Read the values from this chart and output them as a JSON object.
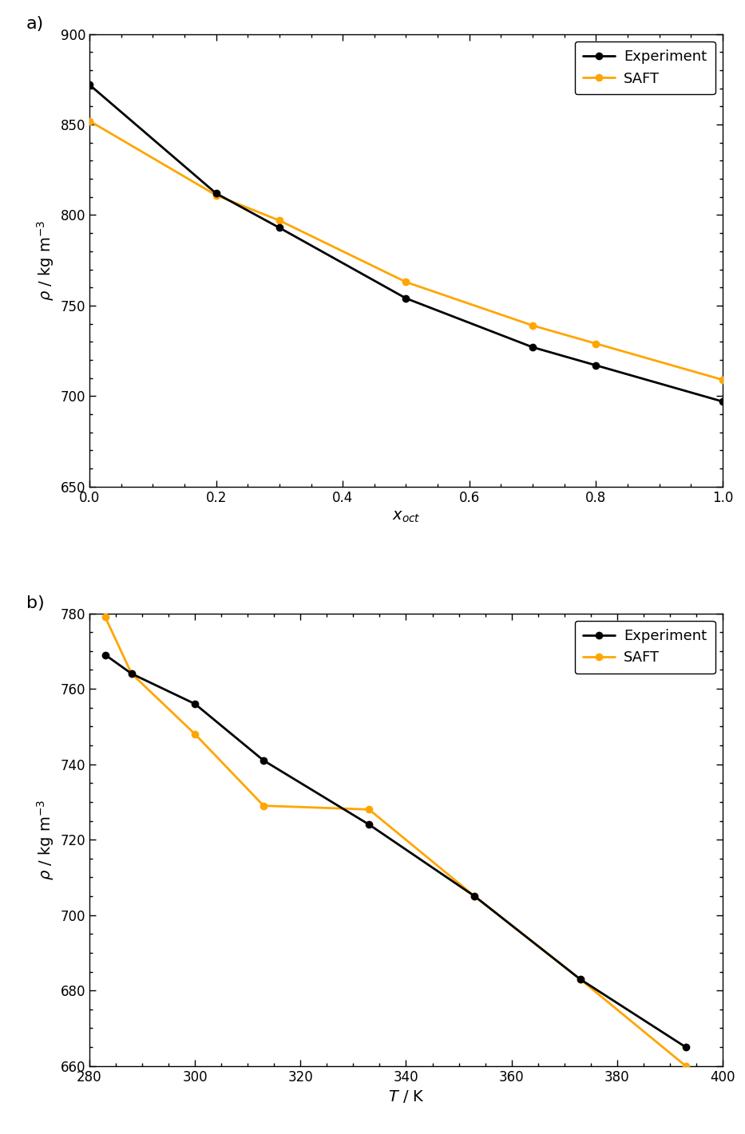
{
  "panel_a": {
    "experiment_x": [
      0.0,
      0.2,
      0.3,
      0.5,
      0.7,
      0.8,
      1.0
    ],
    "experiment_y": [
      872,
      812,
      793,
      754,
      727,
      717,
      697
    ],
    "saft_x": [
      0.0,
      0.2,
      0.3,
      0.5,
      0.7,
      0.8,
      1.0
    ],
    "saft_y": [
      852,
      811,
      797,
      763,
      739,
      729,
      709
    ],
    "xlabel": "$x_{oct}$",
    "ylabel": "$\\rho$ / kg m$^{-3}$",
    "xlim": [
      0.0,
      1.0
    ],
    "ylim": [
      650,
      900
    ],
    "xticks": [
      0.0,
      0.2,
      0.4,
      0.6,
      0.8,
      1.0
    ],
    "yticks": [
      650,
      700,
      750,
      800,
      850,
      900
    ],
    "label": "a)"
  },
  "panel_b": {
    "experiment_x": [
      283,
      288,
      300,
      313,
      333,
      353,
      373,
      393
    ],
    "experiment_y": [
      769,
      764,
      756,
      741,
      724,
      705,
      683,
      665
    ],
    "saft_x": [
      283,
      288,
      300,
      313,
      333,
      353,
      373,
      393
    ],
    "saft_y": [
      779,
      764,
      748,
      729,
      728,
      705,
      683,
      660
    ],
    "xlabel": "$T$ / K",
    "ylabel": "$\\rho$ / kg m$^{-3}$",
    "xlim": [
      280,
      400
    ],
    "ylim": [
      660,
      780
    ],
    "xticks": [
      280,
      300,
      320,
      340,
      360,
      380,
      400
    ],
    "yticks": [
      660,
      680,
      700,
      720,
      740,
      760,
      780
    ],
    "label": "b)"
  },
  "experiment_color": "#000000",
  "saft_color": "#FFA500",
  "linewidth": 2.0,
  "markersize": 6,
  "legend_fontsize": 13,
  "axis_fontsize": 14,
  "tick_fontsize": 12
}
